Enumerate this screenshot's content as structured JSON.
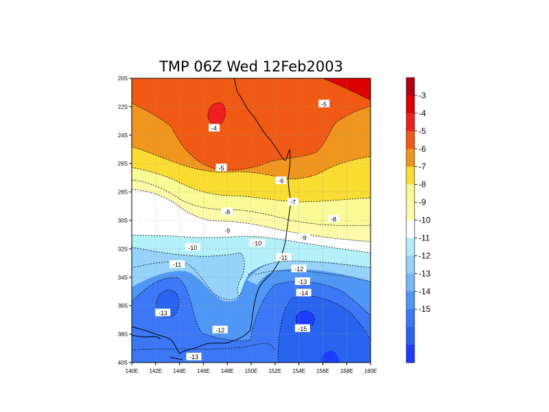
{
  "chart_data": {
    "type": "heatmap",
    "title": "TMP 06Z Wed 12Feb2003",
    "x_ticks": [
      "140E",
      "142E",
      "144E",
      "146E",
      "148E",
      "150E",
      "152E",
      "154E",
      "156E",
      "158E",
      "160E"
    ],
    "y_ticks": [
      "20S",
      "22S",
      "24S",
      "26S",
      "28S",
      "30S",
      "32S",
      "34S",
      "36S",
      "38S",
      "40S"
    ],
    "xlim": [
      140,
      160
    ],
    "ylim": [
      -40,
      -20
    ],
    "grid": true,
    "colorbar": {
      "labels": [
        "-3",
        "-4",
        "-5",
        "-6",
        "-7",
        "-8",
        "-9",
        "-10",
        "-11",
        "-12",
        "-13",
        "-14",
        "-15"
      ],
      "colors": [
        "#b40014",
        "#dc0000",
        "#f01e1e",
        "#f05a14",
        "#f0961e",
        "#fadc32",
        "#fafa96",
        "#fffaaa",
        "#ffffff",
        "#b4f0fa",
        "#96d2fa",
        "#78b9fa",
        "#5096f5",
        "#3c78f5",
        "#2864f0",
        "#1e3cff"
      ]
    },
    "contour_labels": [
      {
        "text": "-5",
        "lon": 156.1,
        "lat": -21.8
      },
      {
        "text": "-4",
        "lon": 146.9,
        "lat": -23.5
      },
      {
        "text": "-5",
        "lon": 147.5,
        "lat": -26.3
      },
      {
        "text": "-6",
        "lon": 152.5,
        "lat": -27.2
      },
      {
        "text": "-7",
        "lon": 153.5,
        "lat": -28.7
      },
      {
        "text": "-8",
        "lon": 148.0,
        "lat": -29.4
      },
      {
        "text": "-8",
        "lon": 156.9,
        "lat": -29.9
      },
      {
        "text": "-9",
        "lon": 148.0,
        "lat": -30.7
      },
      {
        "text": "-9",
        "lon": 154.4,
        "lat": -31.2
      },
      {
        "text": "-10",
        "lon": 145.1,
        "lat": -31.9
      },
      {
        "text": "-10",
        "lon": 150.5,
        "lat": -31.6
      },
      {
        "text": "-11",
        "lon": 143.8,
        "lat": -33.1
      },
      {
        "text": "-11",
        "lon": 152.7,
        "lat": -32.6
      },
      {
        "text": "-12",
        "lon": 154.0,
        "lat": -33.4
      },
      {
        "text": "-13",
        "lon": 154.3,
        "lat": -34.3
      },
      {
        "text": "-14",
        "lon": 154.4,
        "lat": -35.1
      },
      {
        "text": "-13",
        "lon": 142.6,
        "lat": -36.5
      },
      {
        "text": "-12",
        "lon": 147.4,
        "lat": -37.7
      },
      {
        "text": "-15",
        "lon": 154.3,
        "lat": -37.6
      },
      {
        "text": "-13",
        "lon": 145.2,
        "lat": -39.6
      }
    ]
  }
}
